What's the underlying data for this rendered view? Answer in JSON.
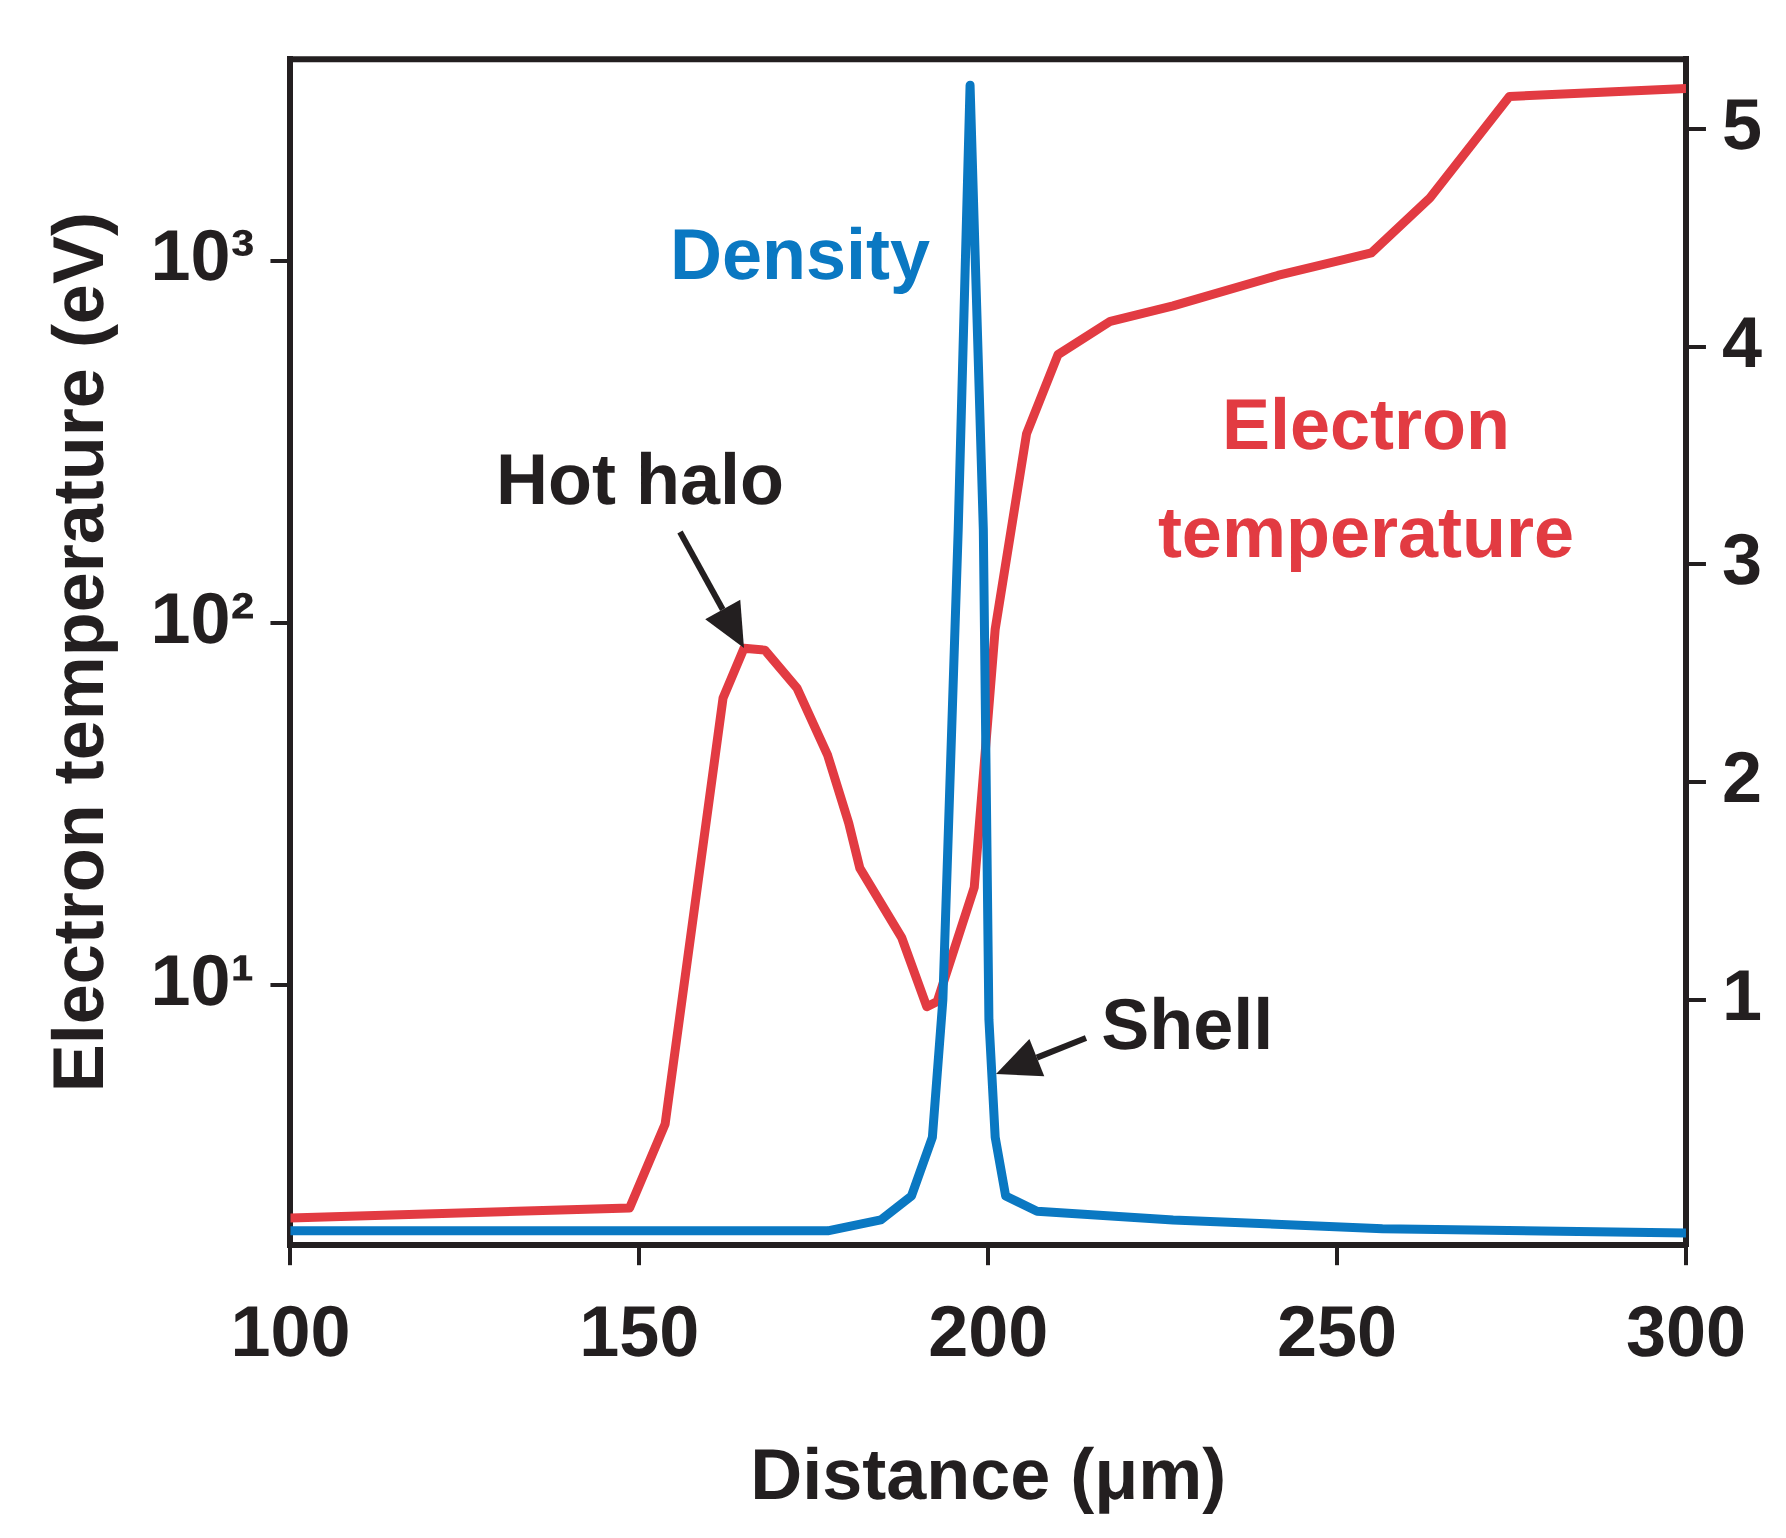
{
  "chart_data": {
    "type": "line",
    "xlabel": "Distance (μm)",
    "ylabel": "Electron temperature (eV)",
    "xlim": [
      100,
      300
    ],
    "xticks": [
      100,
      150,
      200,
      250,
      300
    ],
    "log": "y",
    "ylim": [
      1.91,
      3600
    ],
    "yticks": [
      {
        "value": 10,
        "label": "10¹"
      },
      {
        "value": 100,
        "label": "10²"
      },
      {
        "value": 1000,
        "label": "10³"
      }
    ],
    "y2lim": [
      -0.126,
      5.32
    ],
    "y2ticks": [
      1,
      2,
      3,
      4,
      5
    ],
    "grid": false,
    "legend": false,
    "marker": "none",
    "line_style": "solid",
    "series": [
      {
        "name": "Density",
        "color": "#0a78c2",
        "axis": "y2",
        "x": [
          100,
          177,
          184.6,
          189,
          192,
          193.5,
          195.7,
          197.4,
          199.3,
          200.1,
          201,
          202.5,
          207,
          226.5,
          256.5,
          300
        ],
        "values": [
          -0.06,
          -0.06,
          -0.01,
          0.1,
          0.37,
          1.0,
          3.16,
          5.2,
          3.16,
          0.91,
          0.37,
          0.1,
          0.03,
          -0.01,
          -0.05,
          -0.07
        ]
      },
      {
        "name": "Electron temperature",
        "color": "#e23b42",
        "x": [
          100,
          148.6,
          153.7,
          162,
          165,
          168,
          172.6,
          177,
          180,
          181.6,
          187.6,
          191.2,
          192.7,
          198,
          201,
          205.5,
          210,
          217.5,
          226.5,
          241.5,
          254.9,
          263.3,
          274.7,
          300
        ],
        "values": [
          2.27,
          2.42,
          4.13,
          62,
          85,
          84,
          66,
          43,
          28,
          21,
          13.5,
          8.7,
          9.0,
          18.6,
          96,
          333,
          550,
          680,
          750,
          910,
          1050,
          1490,
          2840,
          2990
        ]
      }
    ],
    "annotations": [
      {
        "text": "Hot halo",
        "x": 165,
        "y": 85
      },
      {
        "text": "Shell",
        "x": 201,
        "y": 5.7
      }
    ]
  }
}
